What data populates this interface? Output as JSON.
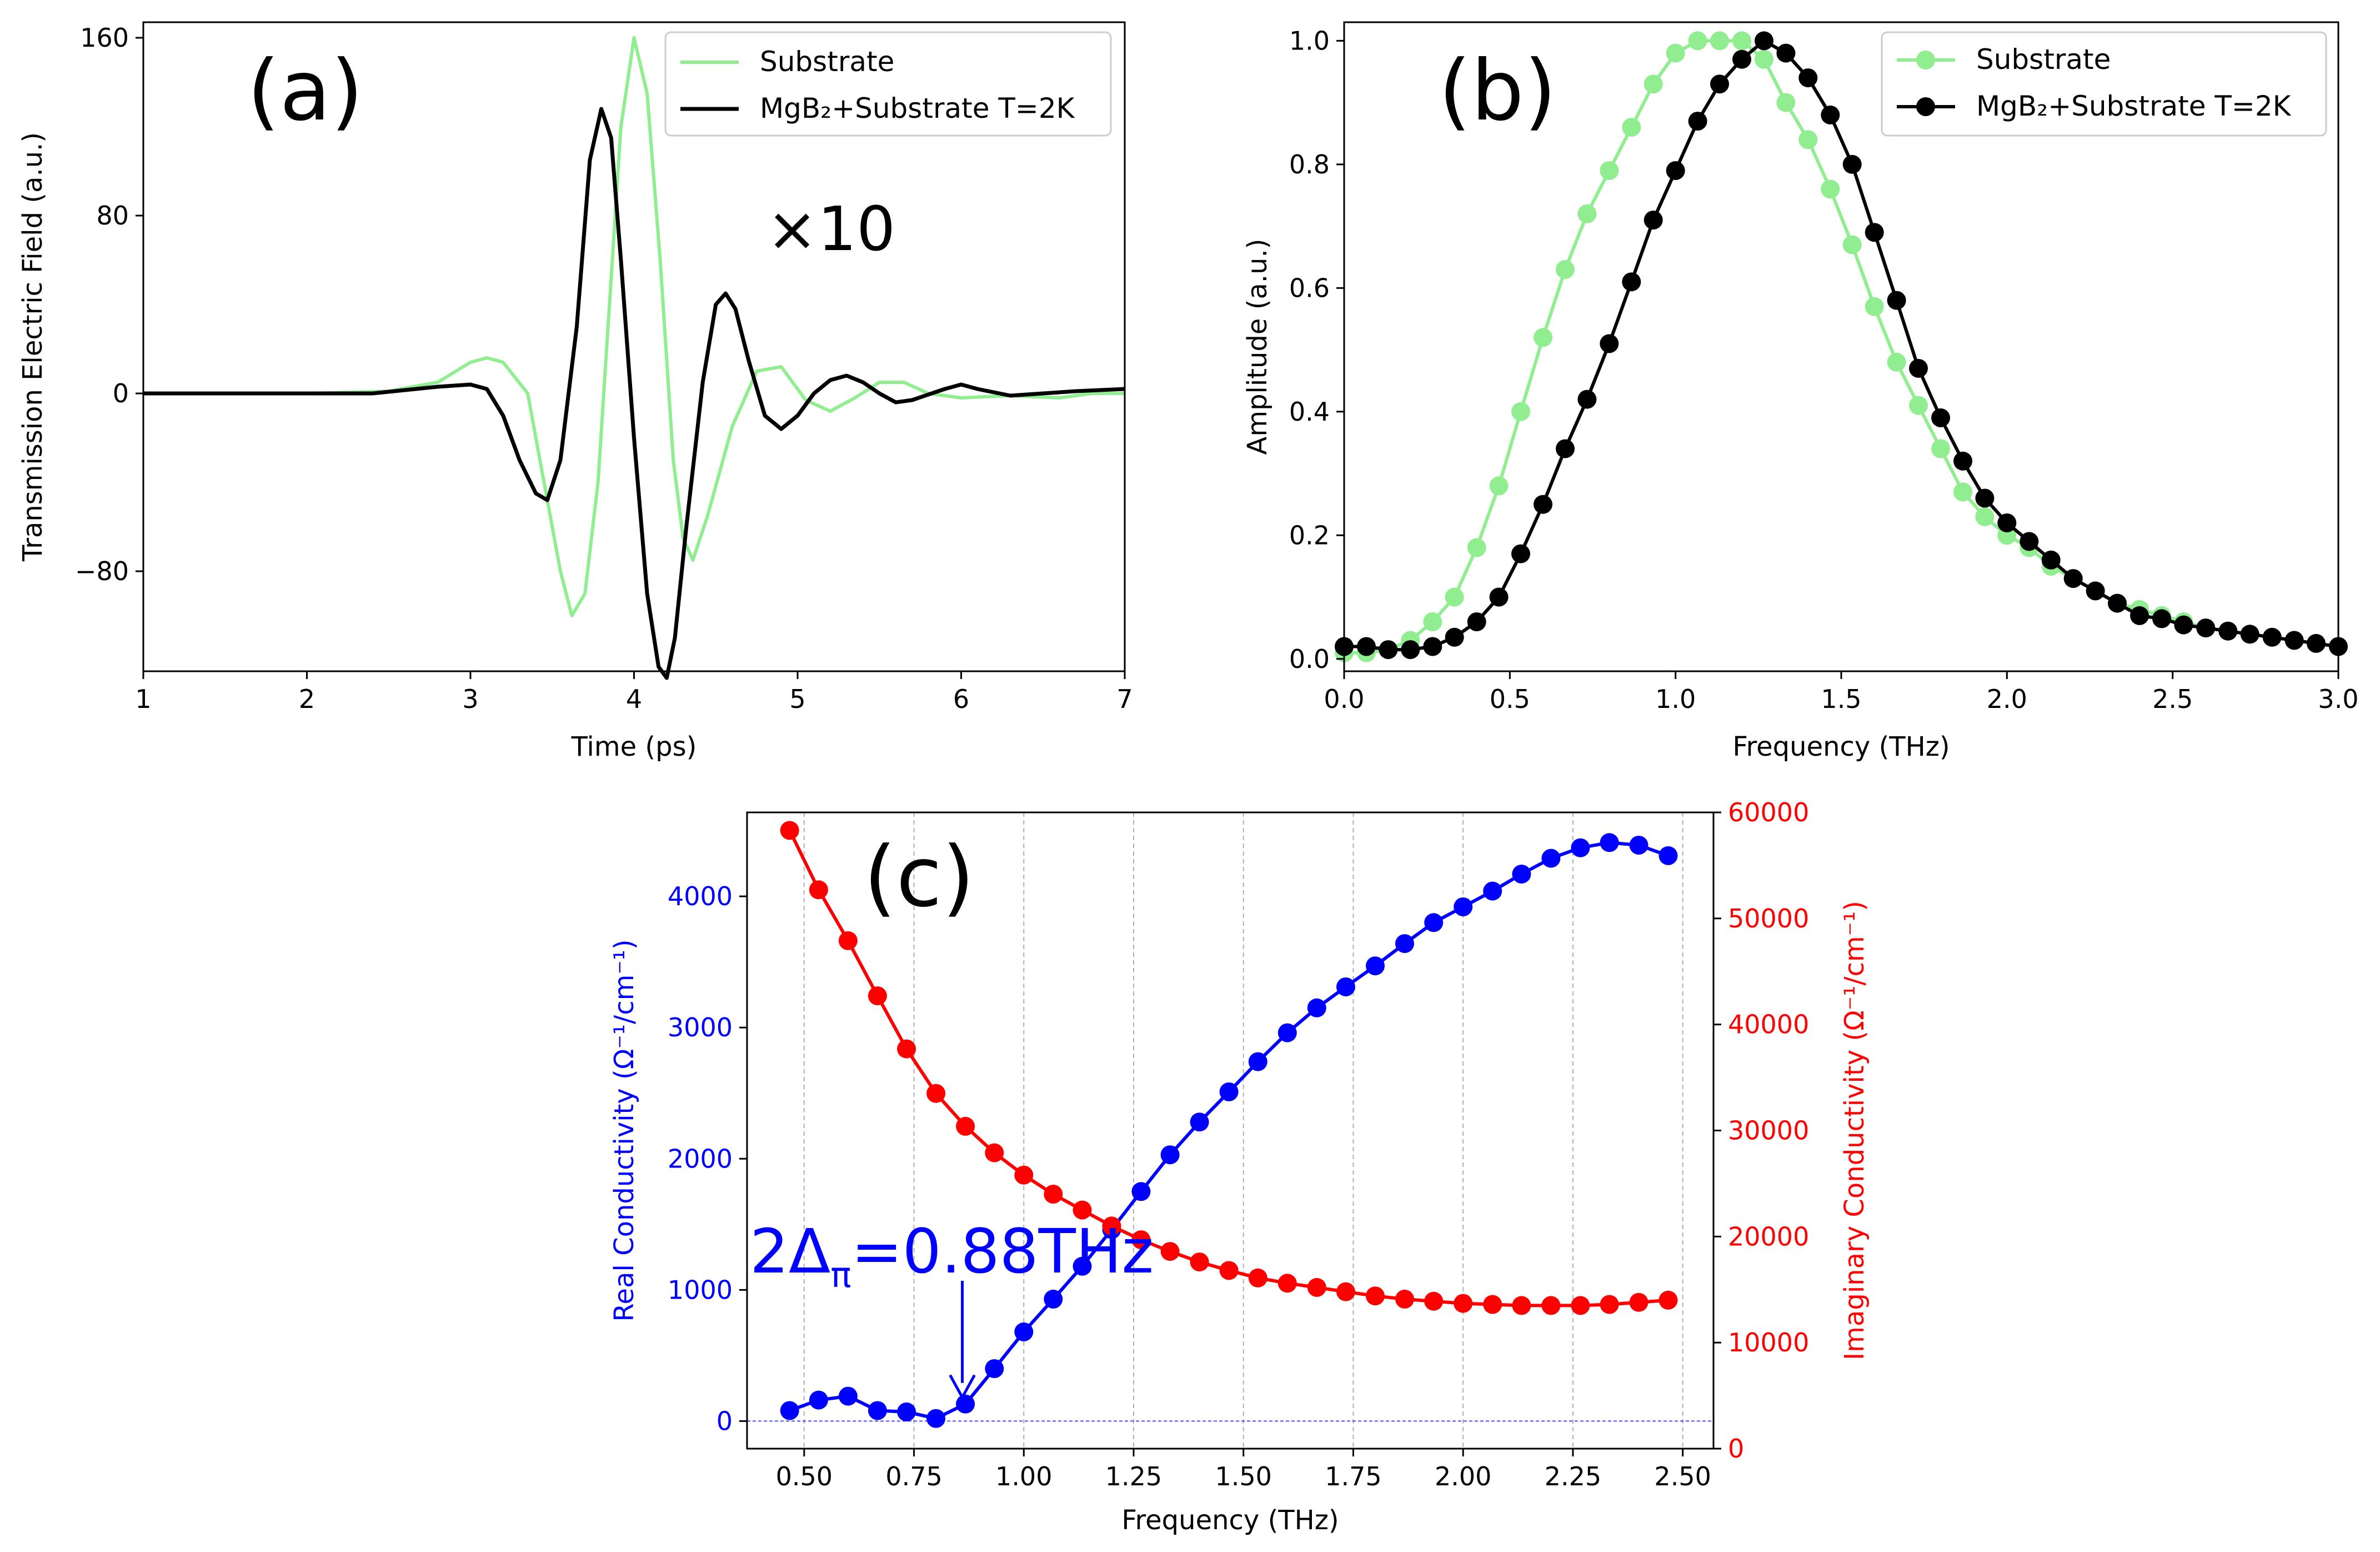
{
  "chart_data": [
    {
      "id": "a",
      "type": "line",
      "panel_label": "(a)",
      "annotation": "×10",
      "xlabel": "Time (ps)",
      "ylabel": "Transmission Electric Field (a.u.)",
      "xlim": [
        1,
        7
      ],
      "ylim": [
        -125,
        167
      ],
      "xticks": [
        1,
        2,
        3,
        4,
        5,
        6,
        7
      ],
      "yticks": [
        -80,
        0,
        80,
        160
      ],
      "legend_position": "top-right",
      "series": [
        {
          "name": "Substrate",
          "color": "#90ee90",
          "marker": "none",
          "points": [
            [
              1,
              0
            ],
            [
              2,
              0
            ],
            [
              2.5,
              1
            ],
            [
              2.8,
              5
            ],
            [
              3,
              14
            ],
            [
              3.1,
              16
            ],
            [
              3.2,
              14
            ],
            [
              3.35,
              0
            ],
            [
              3.45,
              -40
            ],
            [
              3.55,
              -80
            ],
            [
              3.62,
              -100
            ],
            [
              3.7,
              -90
            ],
            [
              3.78,
              -40
            ],
            [
              3.85,
              40
            ],
            [
              3.92,
              120
            ],
            [
              4.0,
              160
            ],
            [
              4.08,
              135
            ],
            [
              4.16,
              60
            ],
            [
              4.24,
              -30
            ],
            [
              4.3,
              -65
            ],
            [
              4.36,
              -75
            ],
            [
              4.45,
              -55
            ],
            [
              4.6,
              -15
            ],
            [
              4.75,
              10
            ],
            [
              4.9,
              12
            ],
            [
              5.05,
              -3
            ],
            [
              5.2,
              -8
            ],
            [
              5.35,
              -2
            ],
            [
              5.5,
              5
            ],
            [
              5.65,
              5
            ],
            [
              5.8,
              0
            ],
            [
              6.0,
              -2
            ],
            [
              6.3,
              -1
            ],
            [
              6.6,
              -2
            ],
            [
              6.8,
              0
            ],
            [
              7.0,
              0
            ]
          ]
        },
        {
          "name": "MgB₂+Substrate T=2K",
          "color": "#000000",
          "marker": "none",
          "points": [
            [
              1,
              0
            ],
            [
              2,
              0
            ],
            [
              2.4,
              0
            ],
            [
              2.8,
              3
            ],
            [
              3.0,
              4
            ],
            [
              3.1,
              2
            ],
            [
              3.2,
              -10
            ],
            [
              3.3,
              -30
            ],
            [
              3.4,
              -45
            ],
            [
              3.47,
              -48
            ],
            [
              3.55,
              -30
            ],
            [
              3.65,
              30
            ],
            [
              3.73,
              105
            ],
            [
              3.8,
              128
            ],
            [
              3.86,
              115
            ],
            [
              3.92,
              60
            ],
            [
              4.0,
              -20
            ],
            [
              4.08,
              -90
            ],
            [
              4.15,
              -123
            ],
            [
              4.2,
              -128
            ],
            [
              4.25,
              -110
            ],
            [
              4.32,
              -60
            ],
            [
              4.42,
              5
            ],
            [
              4.5,
              40
            ],
            [
              4.56,
              45
            ],
            [
              4.62,
              38
            ],
            [
              4.7,
              15
            ],
            [
              4.8,
              -10
            ],
            [
              4.9,
              -16
            ],
            [
              5.0,
              -10
            ],
            [
              5.1,
              0
            ],
            [
              5.2,
              6
            ],
            [
              5.3,
              8
            ],
            [
              5.4,
              5
            ],
            [
              5.5,
              0
            ],
            [
              5.6,
              -4
            ],
            [
              5.7,
              -3
            ],
            [
              5.9,
              2
            ],
            [
              6.0,
              4
            ],
            [
              6.1,
              2
            ],
            [
              6.3,
              -1
            ],
            [
              6.5,
              0
            ],
            [
              6.7,
              1
            ],
            [
              7.0,
              2
            ]
          ]
        }
      ]
    },
    {
      "id": "b",
      "type": "line",
      "panel_label": "(b)",
      "xlabel": "Frequency (THz)",
      "ylabel": "Amplitude (a.u.)",
      "xlim": [
        0.0,
        3.0
      ],
      "ylim": [
        -0.02,
        1.03
      ],
      "xticks": [
        0.0,
        0.5,
        1.0,
        1.5,
        2.0,
        2.5,
        3.0
      ],
      "yticks": [
        0.0,
        0.2,
        0.4,
        0.6,
        0.8,
        1.0
      ],
      "legend_position": "top-right",
      "x": [
        0.0,
        0.067,
        0.133,
        0.2,
        0.267,
        0.333,
        0.4,
        0.467,
        0.533,
        0.6,
        0.667,
        0.733,
        0.8,
        0.867,
        0.933,
        1.0,
        1.067,
        1.133,
        1.2,
        1.267,
        1.333,
        1.4,
        1.467,
        1.533,
        1.6,
        1.667,
        1.733,
        1.8,
        1.867,
        1.933,
        2.0,
        2.067,
        2.133,
        2.2,
        2.267,
        2.333,
        2.4,
        2.467,
        2.533,
        2.6,
        2.667,
        2.733,
        2.8,
        2.867,
        2.933,
        3.0
      ],
      "series": [
        {
          "name": "Substrate",
          "color": "#90ee90",
          "marker": "circle",
          "values": [
            0.01,
            0.01,
            0.015,
            0.03,
            0.06,
            0.1,
            0.18,
            0.28,
            0.4,
            0.52,
            0.63,
            0.72,
            0.79,
            0.86,
            0.93,
            0.98,
            1.0,
            1.0,
            1.0,
            0.97,
            0.9,
            0.84,
            0.76,
            0.67,
            0.57,
            0.48,
            0.41,
            0.34,
            0.27,
            0.23,
            0.2,
            0.18,
            0.15,
            0.13,
            0.11,
            0.09,
            0.08,
            0.07,
            0.06,
            0.05,
            0.045,
            0.04,
            0.035,
            0.03,
            0.025,
            0.02
          ]
        },
        {
          "name": "MgB₂+Substrate T=2K",
          "color": "#000000",
          "marker": "circle",
          "values": [
            0.02,
            0.02,
            0.015,
            0.015,
            0.02,
            0.035,
            0.06,
            0.1,
            0.17,
            0.25,
            0.34,
            0.42,
            0.51,
            0.61,
            0.71,
            0.79,
            0.87,
            0.93,
            0.97,
            1.0,
            0.98,
            0.94,
            0.88,
            0.8,
            0.69,
            0.58,
            0.47,
            0.39,
            0.32,
            0.26,
            0.22,
            0.19,
            0.16,
            0.13,
            0.11,
            0.09,
            0.07,
            0.065,
            0.055,
            0.05,
            0.045,
            0.04,
            0.035,
            0.03,
            0.025,
            0.02
          ]
        }
      ]
    },
    {
      "id": "c",
      "type": "line",
      "panel_label": "(c)",
      "xlabel": "Frequency (THz)",
      "ylabel_left": "Real Conductivity (Ω⁻¹/cm⁻¹)",
      "ylabel_right": "Imaginary Conductivity (Ω⁻¹/cm⁻¹)",
      "xlim": [
        0.37,
        2.57
      ],
      "ylim_left": [
        -210,
        4640
      ],
      "ylim_right": [
        0,
        60000
      ],
      "xticks": [
        0.5,
        0.75,
        1.0,
        1.25,
        1.5,
        1.75,
        2.0,
        2.25,
        2.5
      ],
      "xtick_labels": [
        "0.50",
        "0.75",
        "1.00",
        "1.25",
        "1.50",
        "1.75",
        "2.00",
        "2.25",
        "2.50"
      ],
      "yticks_left": [
        0,
        1000,
        2000,
        3000,
        4000
      ],
      "yticks_right": [
        0,
        10000,
        20000,
        30000,
        40000,
        50000,
        60000
      ],
      "grid": "vertical dashed",
      "annotation": {
        "text_main": "2Δ",
        "text_sub": "π",
        "text_rest": "=0.88THz",
        "arrow_to_x": 0.86,
        "arrow_to_y": 130
      },
      "x": [
        0.467,
        0.533,
        0.6,
        0.667,
        0.733,
        0.8,
        0.867,
        0.933,
        1.0,
        1.067,
        1.133,
        1.2,
        1.267,
        1.333,
        1.4,
        1.467,
        1.533,
        1.6,
        1.667,
        1.733,
        1.8,
        1.867,
        1.933,
        2.0,
        2.067,
        2.133,
        2.2,
        2.267,
        2.333,
        2.4,
        2.467
      ],
      "series": [
        {
          "name": "Real Conductivity",
          "axis": "left",
          "color": "#0000ff",
          "marker": "circle",
          "values": [
            80,
            160,
            190,
            80,
            70,
            20,
            130,
            400,
            680,
            930,
            1180,
            1460,
            1750,
            2030,
            2280,
            2510,
            2740,
            2960,
            3150,
            3310,
            3470,
            3640,
            3800,
            3920,
            4040,
            4170,
            4290,
            4370,
            4410,
            4390,
            4310
          ]
        },
        {
          "name": "Imaginary Conductivity",
          "axis": "right",
          "color": "#ff0000",
          "marker": "circle",
          "values": [
            58300,
            52700,
            47900,
            42700,
            37700,
            33500,
            30400,
            27900,
            25800,
            24000,
            22500,
            21000,
            19700,
            18600,
            17600,
            16800,
            16100,
            15600,
            15200,
            14800,
            14400,
            14100,
            13900,
            13700,
            13600,
            13500,
            13500,
            13500,
            13600,
            13800,
            14000
          ]
        }
      ]
    }
  ]
}
